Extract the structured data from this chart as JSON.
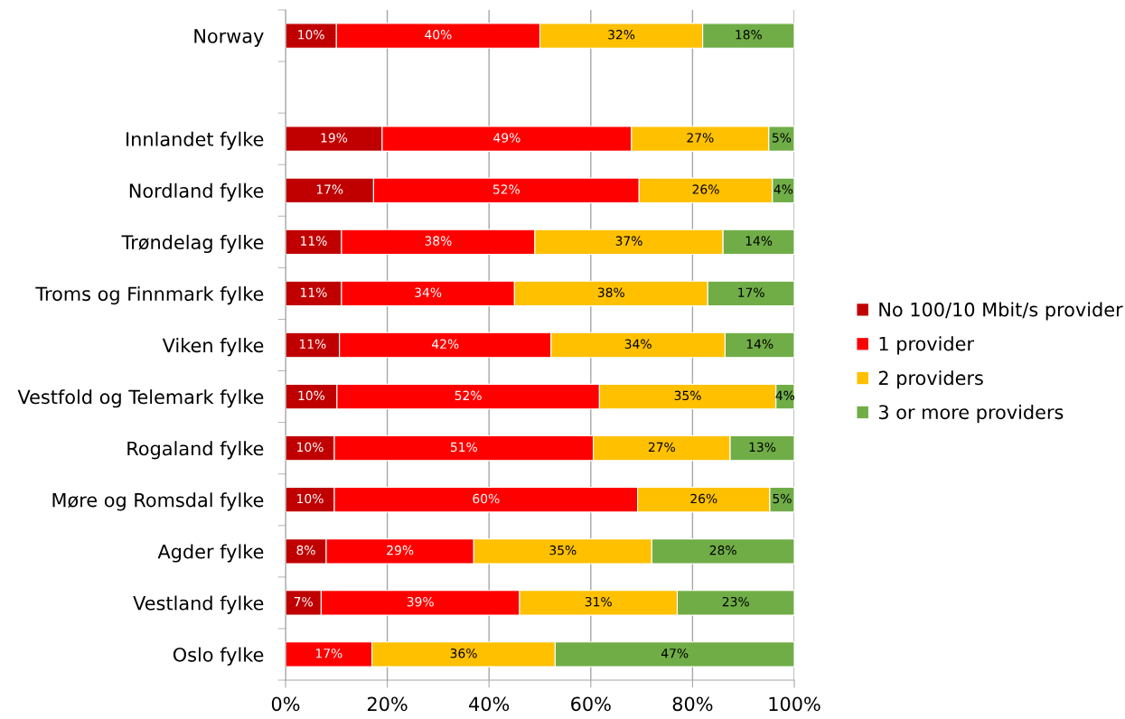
{
  "chart_data": {
    "type": "bar",
    "orientation": "horizontal",
    "stacked": true,
    "categories": [
      "Norway",
      null,
      "Innlandet fylke",
      "Nordland fylke",
      "Trøndelag fylke",
      "Troms og Finnmark fylke",
      "Viken fylke",
      "Vestfold og Telemark fylke",
      "Rogaland fylke",
      "Møre og Romsdal fylke",
      "Agder fylke",
      "Vestland fylke",
      "Oslo fylke"
    ],
    "series": [
      {
        "name": "No 100/10 Mbit/s provider",
        "color": "#c00000",
        "values": [
          10,
          null,
          19,
          17.3,
          11,
          11,
          10.6,
          10.1,
          9.6,
          9.6,
          8,
          7,
          null
        ],
        "value_labels": [
          "10%",
          null,
          "19%",
          "17%",
          "11%",
          "11%",
          "11%",
          "10%",
          "10%",
          "10%",
          "8%",
          "7%",
          null
        ]
      },
      {
        "name": "1 provider",
        "color": "#ff0000",
        "values": [
          40,
          null,
          49,
          52.2,
          38,
          34,
          41.6,
          51.6,
          50.9,
          59.6,
          29,
          39,
          17
        ],
        "value_labels": [
          "40%",
          null,
          "49%",
          "52%",
          "38%",
          "34%",
          "42%",
          "52%",
          "51%",
          "60%",
          "29%",
          "39%",
          "17%"
        ]
      },
      {
        "name": "2 providers",
        "color": "#ffc000",
        "values": [
          32,
          null,
          27,
          26.2,
          37,
          38,
          34.2,
          34.7,
          26.9,
          26.0,
          35,
          31,
          36
        ],
        "value_labels": [
          "32%",
          null,
          "27%",
          "26%",
          "37%",
          "38%",
          "34%",
          "35%",
          "27%",
          "26%",
          "35%",
          "31%",
          "36%"
        ]
      },
      {
        "name": "3 or more providers",
        "color": "#70ad47",
        "values": [
          18,
          null,
          5,
          4.3,
          14,
          17,
          13.6,
          3.6,
          12.6,
          4.8,
          28,
          23,
          47
        ],
        "value_labels": [
          "18%",
          null,
          "5%",
          "4%",
          "14%",
          "17%",
          "14%",
          "4%",
          "13%",
          "5%",
          "28%",
          "23%",
          "47%"
        ]
      }
    ],
    "xlim": [
      0,
      100
    ],
    "xticks": [
      {
        "value": 0,
        "label": "0%"
      },
      {
        "value": 20,
        "label": "20%"
      },
      {
        "value": 40,
        "label": "40%"
      },
      {
        "value": 60,
        "label": "60%"
      },
      {
        "value": 80,
        "label": "80%"
      },
      {
        "value": 100,
        "label": "100%"
      }
    ],
    "grid": "x",
    "legend": "right"
  }
}
